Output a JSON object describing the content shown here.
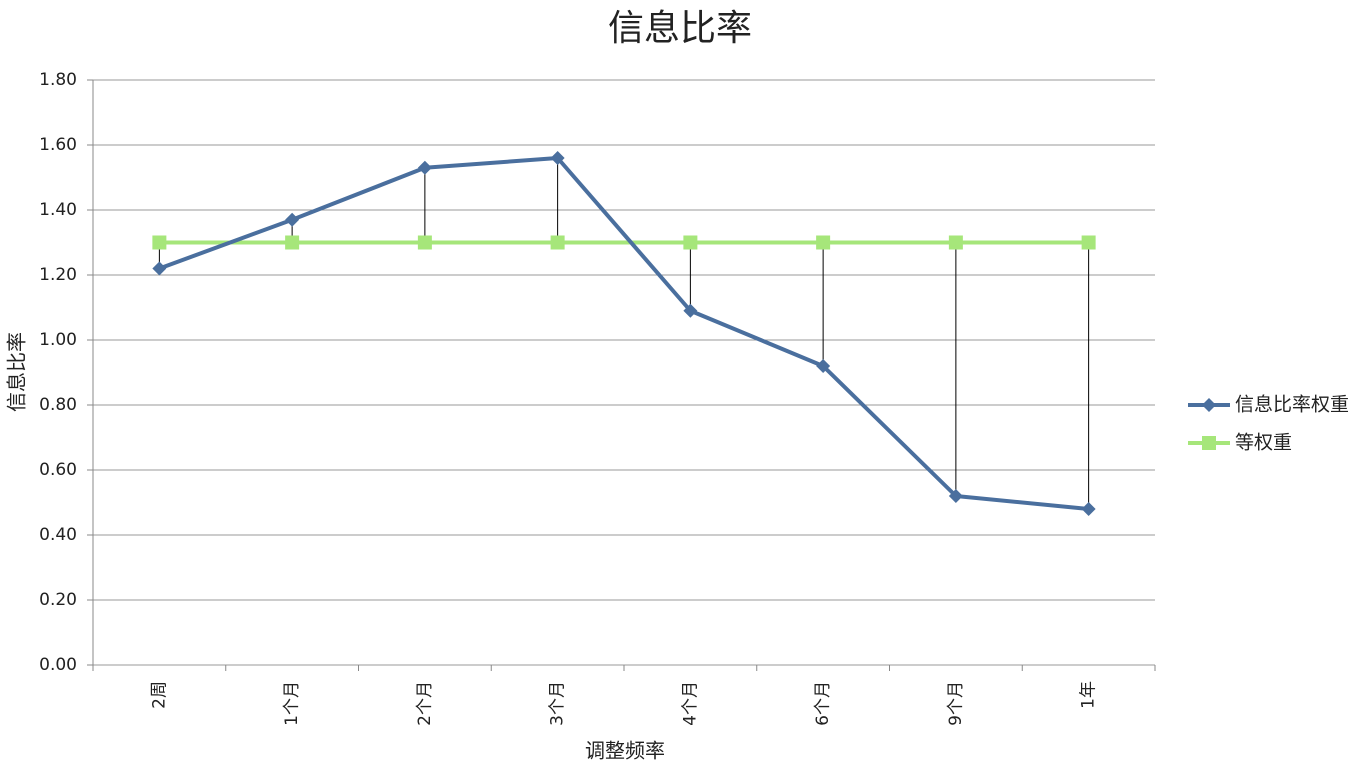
{
  "chart_data": {
    "type": "line",
    "title": "信息比率",
    "x_label": "调整频率",
    "y_label": "信息比率",
    "categories": [
      "2周",
      "1个月",
      "2个月",
      "3个月",
      "4个月",
      "6个月",
      "9个月",
      "1年"
    ],
    "series": [
      {
        "name": "信息比率权重",
        "color": "#4a6f9e",
        "marker": "diamond",
        "values": [
          1.22,
          1.37,
          1.53,
          1.56,
          1.09,
          0.92,
          0.52,
          0.48
        ]
      },
      {
        "name": "等权重",
        "color": "#a6e67a",
        "marker": "square",
        "values": [
          1.3,
          1.3,
          1.3,
          1.3,
          1.3,
          1.3,
          1.3,
          1.3
        ]
      }
    ],
    "ylim": [
      0,
      1.8
    ],
    "yticks": [
      {
        "value": 0,
        "label": "0.00"
      },
      {
        "value": 0.2,
        "label": "0.20"
      },
      {
        "value": 0.4,
        "label": "0.40"
      },
      {
        "value": 0.6,
        "label": "0.60"
      },
      {
        "value": 0.8,
        "label": "0.80"
      },
      {
        "value": 1,
        "label": "1.00"
      },
      {
        "value": 1.2,
        "label": "1.20"
      },
      {
        "value": 1.4,
        "label": "1.40"
      },
      {
        "value": 1.6,
        "label": "1.60"
      },
      {
        "value": 1.8,
        "label": "1.80"
      }
    ],
    "grid": true,
    "drop_lines": true,
    "legend": "right"
  }
}
